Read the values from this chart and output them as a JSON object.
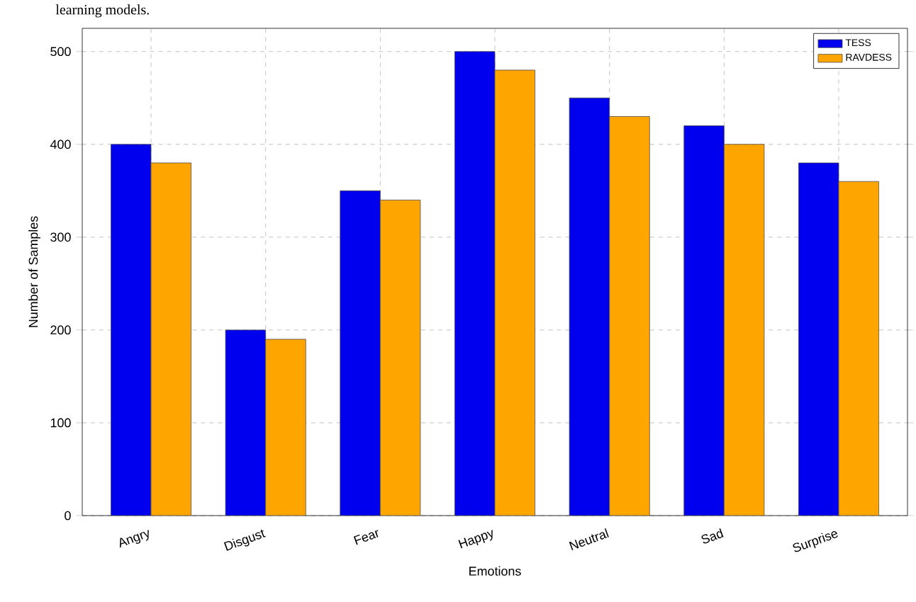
{
  "chart_data": {
    "type": "bar",
    "xlabel": "Emotions",
    "ylabel": "Number of Samples",
    "categories": [
      "Angry",
      "Disgust",
      "Fear",
      "Happy",
      "Neutral",
      "Sad",
      "Surprise"
    ],
    "series": [
      {
        "name": "TESS",
        "color": "#0000ee",
        "values": [
          400,
          200,
          350,
          500,
          450,
          420,
          380
        ]
      },
      {
        "name": "RAVDESS",
        "color": "#ffa500",
        "values": [
          380,
          190,
          340,
          480,
          430,
          400,
          360
        ]
      }
    ],
    "ylim": [
      0,
      525
    ],
    "yticks": [
      0,
      100,
      200,
      300,
      400,
      500
    ],
    "grid": true,
    "legend": "top right",
    "annotations": [
      "learning models."
    ]
  }
}
